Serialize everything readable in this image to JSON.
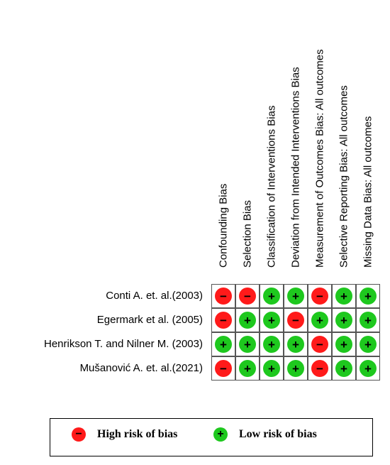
{
  "colors": {
    "high": "#ff1a1a",
    "low": "#1ec81e"
  },
  "symbols": {
    "high": "−",
    "low": "+"
  },
  "columns": [
    "Confounding Bias",
    "Selection Bias",
    "Classification of Interventions Bias",
    "Deviation from Intended Interventions Bias",
    "Measurement of Outcomes Bias: All outcomes",
    "Selective Reporting Bias: All outcomes",
    "Missing Data Bias: All outcomes"
  ],
  "studies": [
    {
      "name": "Conti A. et. al.(2003)",
      "ratings": [
        "high",
        "high",
        "low",
        "low",
        "high",
        "low",
        "low"
      ]
    },
    {
      "name": "Egermark et al. (2005)",
      "ratings": [
        "high",
        "low",
        "low",
        "high",
        "low",
        "low",
        "low"
      ]
    },
    {
      "name": "Henrikson T. and Nilner M. (2003)",
      "ratings": [
        "low",
        "low",
        "low",
        "low",
        "high",
        "low",
        "low"
      ]
    },
    {
      "name": "Mušanović A. et. al.(2021)",
      "ratings": [
        "high",
        "low",
        "low",
        "low",
        "high",
        "low",
        "low"
      ]
    }
  ],
  "legend": {
    "high_label": "High risk of bias",
    "low_label": "Low  risk of bias"
  }
}
